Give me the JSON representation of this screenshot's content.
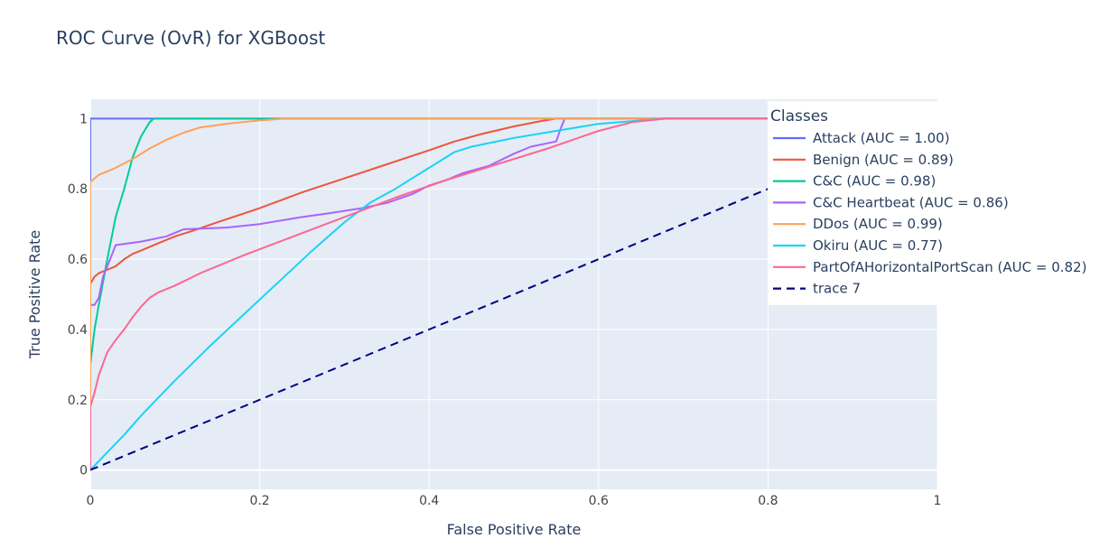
{
  "chart_data": {
    "type": "line",
    "title": "ROC Curve (OvR) for XGBoost",
    "xlabel": "False Positive Rate",
    "ylabel": "True Positive Rate",
    "xlim": [
      0,
      1
    ],
    "ylim": [
      -0.055,
      1.055
    ],
    "x_ticks": [
      0,
      0.2,
      0.4,
      0.6,
      0.8,
      1
    ],
    "x_tick_labels": [
      "0",
      "0.2",
      "0.4",
      "0.6",
      "0.8",
      "1"
    ],
    "y_ticks": [
      0,
      0.2,
      0.4,
      0.6,
      0.8,
      1
    ],
    "y_tick_labels": [
      "0",
      "0.2",
      "0.4",
      "0.6",
      "0.8",
      "1"
    ],
    "grid": true,
    "plot_bgcolor": "#e5ecf6",
    "legend": {
      "title": "Classes",
      "placement": "top-right"
    },
    "series": [
      {
        "name": "Attack (AUC = 1.00)",
        "color": "#636efa",
        "dash": "solid",
        "x": [
          0,
          0,
          0,
          1
        ],
        "y": [
          0,
          0.8,
          1,
          1
        ]
      },
      {
        "name": "Benign (AUC = 0.89)",
        "color": "#ef553b",
        "dash": "solid",
        "x": [
          0,
          0,
          0.005,
          0.01,
          0.02,
          0.03,
          0.04,
          0.05,
          0.06,
          0.08,
          0.1,
          0.12,
          0.15,
          0.2,
          0.25,
          0.3,
          0.35,
          0.4,
          0.43,
          0.46,
          0.5,
          0.53,
          0.55,
          0.6,
          1
        ],
        "y": [
          0,
          0.53,
          0.55,
          0.56,
          0.57,
          0.58,
          0.6,
          0.615,
          0.625,
          0.645,
          0.665,
          0.68,
          0.705,
          0.745,
          0.79,
          0.83,
          0.87,
          0.91,
          0.935,
          0.955,
          0.978,
          0.992,
          1,
          1,
          1
        ]
      },
      {
        "name": "C&C (AUC = 0.98)",
        "color": "#00cc96",
        "dash": "solid",
        "x": [
          0,
          0,
          0.005,
          0.01,
          0.02,
          0.03,
          0.04,
          0.05,
          0.06,
          0.07,
          0.075,
          0.1,
          1
        ],
        "y": [
          0,
          0.3,
          0.4,
          0.47,
          0.6,
          0.72,
          0.8,
          0.89,
          0.95,
          0.99,
          1,
          1,
          1
        ]
      },
      {
        "name": "C&C Heartbeat (AUC = 0.86)",
        "color": "#ab63fa",
        "dash": "solid",
        "x": [
          0,
          0,
          0.005,
          0.01,
          0.015,
          0.02,
          0.025,
          0.03,
          0.06,
          0.09,
          0.11,
          0.16,
          0.2,
          0.25,
          0.28,
          0.32,
          0.35,
          0.38,
          0.4,
          0.42,
          0.44,
          0.47,
          0.5,
          0.52,
          0.55,
          0.555,
          0.56,
          1
        ],
        "y": [
          0,
          0.47,
          0.47,
          0.49,
          0.55,
          0.58,
          0.61,
          0.64,
          0.65,
          0.665,
          0.685,
          0.69,
          0.7,
          0.72,
          0.73,
          0.745,
          0.76,
          0.785,
          0.81,
          0.825,
          0.845,
          0.865,
          0.9,
          0.92,
          0.935,
          0.97,
          1,
          1
        ]
      },
      {
        "name": "DDos (AUC = 0.99)",
        "color": "#ffa15a",
        "dash": "solid",
        "x": [
          0,
          0,
          0,
          0.005,
          0.01,
          0.02,
          0.03,
          0.05,
          0.07,
          0.09,
          0.11,
          0.13,
          0.16,
          0.2,
          0.23,
          0.25,
          1
        ],
        "y": [
          0,
          0.6,
          0.82,
          0.83,
          0.84,
          0.85,
          0.86,
          0.885,
          0.915,
          0.94,
          0.96,
          0.975,
          0.985,
          0.995,
          1,
          1,
          1
        ]
      },
      {
        "name": "Okiru (AUC = 0.77)",
        "color": "#19d3f3",
        "dash": "solid",
        "x": [
          0,
          0.02,
          0.04,
          0.06,
          0.08,
          0.1,
          0.14,
          0.18,
          0.22,
          0.26,
          0.3,
          0.33,
          0.36,
          0.4,
          0.43,
          0.45,
          0.5,
          0.55,
          0.6,
          0.65,
          0.68,
          1
        ],
        "y": [
          0,
          0.05,
          0.1,
          0.155,
          0.205,
          0.255,
          0.35,
          0.44,
          0.53,
          0.62,
          0.705,
          0.76,
          0.8,
          0.86,
          0.905,
          0.92,
          0.945,
          0.965,
          0.985,
          0.995,
          1,
          1
        ]
      },
      {
        "name": "PartOfAHorizontalPortScan (AUC = 0.82)",
        "color": "#ff6692",
        "dash": "solid",
        "x": [
          0,
          0,
          0.005,
          0.01,
          0.02,
          0.03,
          0.04,
          0.05,
          0.06,
          0.07,
          0.08,
          0.1,
          0.13,
          0.18,
          0.24,
          0.3,
          0.36,
          0.42,
          0.48,
          0.54,
          0.6,
          0.64,
          0.68,
          1
        ],
        "y": [
          0,
          0.18,
          0.22,
          0.27,
          0.335,
          0.37,
          0.4,
          0.435,
          0.465,
          0.49,
          0.505,
          0.525,
          0.56,
          0.61,
          0.665,
          0.72,
          0.775,
          0.825,
          0.87,
          0.915,
          0.965,
          0.99,
          1,
          1
        ]
      },
      {
        "name": "trace 7",
        "color": "#000080",
        "dash": "dash",
        "x": [
          0,
          1
        ],
        "y": [
          0,
          1
        ]
      }
    ]
  }
}
